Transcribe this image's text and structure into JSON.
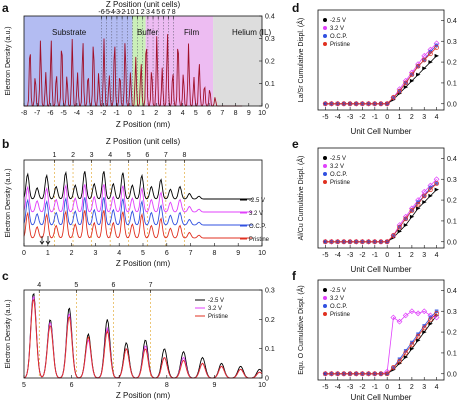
{
  "figure": {
    "panel_labels": [
      "a",
      "b",
      "c",
      "d",
      "e",
      "f"
    ],
    "xlabel_z_nm": "Z Position (nm)",
    "xlabel_z_uc": "Z Position (unit cells)",
    "ylabel_density": "Electron Density (a.u.)",
    "xlabel_unit_cell": "Unit Cell Number"
  },
  "regions": [
    "Substrate",
    "Buffer",
    "Film",
    "Helium (IL)"
  ],
  "region_colors": [
    "#9aa6ee",
    "#b8eaa0",
    "#e7a6ee",
    "#d2d2d2"
  ],
  "series_colors": {
    "-2.5 V": "#000000",
    "3.2 V": "#e040fb",
    "O.C.P.": "#3050e0",
    "Pristine": "#e03020"
  },
  "chart_data": [
    {
      "id": "a",
      "type": "line",
      "xlabel": "Z Position (nm)",
      "x2label": "Z Position (unit cells)",
      "ylabel": "Electron Density (a.u.)",
      "xlim": [
        -8,
        10
      ],
      "ylim": [
        0,
        0.4
      ],
      "xticks": [
        "-8",
        "-7",
        "-6",
        "-5",
        "-4",
        "-3",
        "-2",
        "-1",
        "0",
        "1",
        "2",
        "3",
        "4",
        "5",
        "6",
        "7",
        "8",
        "9",
        "10"
      ],
      "x2ticks": [
        "-6",
        "-5",
        "-4",
        "-3",
        "-2",
        "-1",
        "0",
        "1",
        "2",
        "3",
        "4",
        "5",
        "6",
        "7",
        "8"
      ],
      "yticks": [
        "0",
        "0.1",
        "0.2",
        "0.3",
        "0.4"
      ],
      "regions": [
        {
          "label": "Substrate",
          "from": -8,
          "to": 0.2
        },
        {
          "label": "Buffer",
          "from": 0.2,
          "to": 1.2
        },
        {
          "label": "Film",
          "from": 1.2,
          "to": 6.3
        },
        {
          "label": "Helium (IL)",
          "from": 6.3,
          "to": 10
        }
      ],
      "series": [
        {
          "peak_positions": [
            -7.55,
            -7.15,
            -6.75,
            -6.35,
            -5.95,
            -5.55,
            -5.15,
            -4.75,
            -4.35,
            -3.95,
            -3.55,
            -3.15,
            -2.75,
            -2.35,
            -1.95,
            -1.55,
            -1.15,
            -0.75,
            -0.35,
            0.05,
            0.45,
            0.85,
            1.25,
            1.65,
            2.05,
            2.45,
            2.85,
            3.25,
            3.65,
            4.05,
            4.45,
            4.85,
            5.25,
            5.65,
            6.05,
            6.45
          ],
          "peak_heights": [
            0.28,
            0.14,
            0.3,
            0.15,
            0.3,
            0.15,
            0.3,
            0.14,
            0.3,
            0.15,
            0.3,
            0.15,
            0.3,
            0.15,
            0.3,
            0.14,
            0.3,
            0.15,
            0.3,
            0.15,
            0.22,
            0.2,
            0.31,
            0.17,
            0.32,
            0.17,
            0.33,
            0.16,
            0.31,
            0.15,
            0.28,
            0.13,
            0.2,
            0.1,
            0.08,
            0.04
          ]
        }
      ]
    },
    {
      "id": "b",
      "type": "line",
      "xlabel": "Z Position (nm)",
      "x2label": "Z Position (unit cells)",
      "ylabel": "Electron Density (a.u.)",
      "xlim": [
        0,
        10
      ],
      "xticks": [
        "0",
        "1",
        "2",
        "3",
        "4",
        "5",
        "6",
        "7",
        "8",
        "9",
        "10"
      ],
      "x2ticks": [
        "1",
        "2",
        "3",
        "4",
        "5",
        "6",
        "7",
        "8"
      ],
      "series": [
        {
          "name": "-2.5 V",
          "offset": 3,
          "peak_positions": [
            0.15,
            0.55,
            0.95,
            1.35,
            1.75,
            2.15,
            2.55,
            2.95,
            3.35,
            3.75,
            4.15,
            4.55,
            4.95,
            5.35,
            5.75,
            6.15,
            6.55,
            6.95,
            7.35
          ],
          "peak_heights": [
            0.9,
            0.4,
            0.85,
            0.45,
            0.95,
            0.5,
            1.0,
            0.55,
            1.0,
            0.55,
            0.95,
            0.5,
            0.85,
            0.45,
            0.7,
            0.35,
            0.45,
            0.2,
            0.1
          ]
        },
        {
          "name": "3.2 V",
          "offset": 2,
          "peak_positions": [
            0.15,
            0.55,
            0.95,
            1.35,
            1.75,
            2.15,
            2.55,
            2.95,
            3.35,
            3.75,
            4.15,
            4.55,
            4.95,
            5.35,
            5.75,
            6.15,
            6.55,
            6.95,
            7.35
          ],
          "peak_heights": [
            0.9,
            0.4,
            0.85,
            0.45,
            0.95,
            0.5,
            1.0,
            0.55,
            1.0,
            0.55,
            0.95,
            0.5,
            0.85,
            0.45,
            0.7,
            0.35,
            0.45,
            0.2,
            0.1
          ]
        },
        {
          "name": "O.C.P.",
          "offset": 1,
          "peak_positions": [
            0.15,
            0.55,
            0.95,
            1.35,
            1.75,
            2.15,
            2.55,
            2.95,
            3.35,
            3.75,
            4.15,
            4.55,
            4.95,
            5.35,
            5.75,
            6.15,
            6.55,
            6.95,
            7.35
          ],
          "peak_heights": [
            0.9,
            0.4,
            0.85,
            0.45,
            0.95,
            0.5,
            1.0,
            0.55,
            1.0,
            0.55,
            0.95,
            0.5,
            0.85,
            0.45,
            0.7,
            0.35,
            0.45,
            0.2,
            0.1
          ]
        },
        {
          "name": "Pristine",
          "offset": 0,
          "peak_positions": [
            0.15,
            0.55,
            0.95,
            1.35,
            1.75,
            2.15,
            2.55,
            2.95,
            3.35,
            3.75,
            4.15,
            4.55,
            4.95,
            5.35,
            5.75,
            6.15,
            6.55,
            6.95,
            7.35
          ],
          "peak_heights": [
            0.9,
            0.4,
            0.85,
            0.45,
            0.95,
            0.5,
            1.0,
            0.55,
            1.0,
            0.55,
            0.95,
            0.5,
            0.85,
            0.45,
            0.7,
            0.35,
            0.45,
            0.2,
            0.1
          ]
        }
      ]
    },
    {
      "id": "c",
      "type": "line",
      "xlabel": "Z Position (nm)",
      "x2label": "Z Position (unit cells)",
      "ylabel": "Electron Density (a.u.)",
      "xlim": [
        5,
        10
      ],
      "ylim": [
        0,
        0.3
      ],
      "xticks": [
        "5",
        "6",
        "7",
        "8",
        "9",
        "10"
      ],
      "x2ticks": [
        "4",
        "5",
        "6",
        "7"
      ],
      "yticks": [
        "0",
        "0.1",
        "0.2",
        "0.3"
      ],
      "series": [
        {
          "name": "-2.5 V",
          "peak_positions": [
            5.2,
            5.55,
            5.95,
            6.35,
            6.75,
            7.15,
            7.55,
            7.95,
            8.35,
            8.75,
            9.15,
            9.55,
            9.95
          ],
          "peak_heights": [
            0.29,
            0.2,
            0.24,
            0.15,
            0.2,
            0.12,
            0.13,
            0.1,
            0.09,
            0.07,
            0.05,
            0.04,
            0.03
          ]
        },
        {
          "name": "3.2 V",
          "peak_positions": [
            5.2,
            5.55,
            5.95,
            6.35,
            6.75,
            7.15,
            7.55,
            7.95,
            8.35,
            8.75,
            9.15,
            9.55,
            9.95
          ],
          "peak_heights": [
            0.28,
            0.19,
            0.22,
            0.13,
            0.17,
            0.1,
            0.11,
            0.07,
            0.07,
            0.05,
            0.04,
            0.03,
            0.02
          ]
        },
        {
          "name": "Pristine",
          "peak_positions": [
            5.2,
            5.55,
            5.95,
            6.35,
            6.75,
            7.15,
            7.55,
            7.95,
            8.35,
            8.75,
            9.15,
            9.55,
            9.95
          ],
          "peak_heights": [
            0.27,
            0.18,
            0.21,
            0.14,
            0.16,
            0.1,
            0.1,
            0.07,
            0.06,
            0.05,
            0.04,
            0.03,
            0.02
          ]
        }
      ]
    },
    {
      "id": "d",
      "type": "scatter",
      "xlabel": "Unit Cell Number",
      "ylabel": "La/Sr Cumulative Displ. (Å)",
      "xlim": [
        -5.6,
        4.6
      ],
      "ylim": [
        -0.03,
        0.45
      ],
      "xticks": [
        "-5",
        "-4",
        "-3",
        "-2",
        "-1",
        "0",
        "1",
        "2",
        "3",
        "4"
      ],
      "yticks": [
        "0.0",
        "0.1",
        "0.2",
        "0.3",
        "0.4"
      ],
      "x": [
        -5,
        -4.5,
        -4,
        -3.5,
        -3,
        -2.5,
        -2,
        -1.5,
        -1,
        -0.5,
        0,
        0.5,
        1,
        1.5,
        2,
        2.5,
        3,
        3.5,
        4
      ],
      "series": [
        {
          "name": "-2.5 V",
          "values": [
            0,
            0,
            0,
            0,
            0,
            0,
            0,
            0,
            0,
            0,
            0,
            0.02,
            0.05,
            0.08,
            0.11,
            0.14,
            0.17,
            0.2,
            0.23
          ]
        },
        {
          "name": "3.2 V",
          "values": [
            0,
            0,
            0,
            0,
            0,
            0,
            0,
            0,
            0,
            0,
            0,
            0.03,
            0.07,
            0.11,
            0.15,
            0.19,
            0.23,
            0.26,
            0.29
          ]
        },
        {
          "name": "O.C.P.",
          "values": [
            0,
            0,
            0,
            0,
            0,
            0,
            0,
            0,
            0,
            0,
            0,
            0.03,
            0.06,
            0.1,
            0.14,
            0.18,
            0.21,
            0.25,
            0.28
          ]
        },
        {
          "name": "Pristine",
          "values": [
            0,
            0,
            0,
            0,
            0,
            0,
            0,
            0,
            0,
            0,
            0,
            0.03,
            0.06,
            0.1,
            0.14,
            0.18,
            0.21,
            0.24,
            0.27
          ]
        }
      ]
    },
    {
      "id": "e",
      "type": "scatter",
      "xlabel": "Unit Cell Number",
      "ylabel": "Al/Cu Cumulative Displ. (Å)",
      "xlim": [
        -5.6,
        4.6
      ],
      "ylim": [
        -0.03,
        0.45
      ],
      "xticks": [
        "-5",
        "-4",
        "-3",
        "-2",
        "-1",
        "0",
        "1",
        "2",
        "3",
        "4"
      ],
      "yticks": [
        "0.0",
        "0.1",
        "0.2",
        "0.3",
        "0.4"
      ],
      "x": [
        -5,
        -4.5,
        -4,
        -3.5,
        -3,
        -2.5,
        -2,
        -1.5,
        -1,
        -0.5,
        0,
        0.5,
        1,
        1.5,
        2,
        2.5,
        3,
        3.5,
        4
      ],
      "series": [
        {
          "name": "-2.5 V",
          "values": [
            0,
            0,
            0,
            0,
            0,
            0,
            0,
            0,
            0,
            0,
            0,
            0.02,
            0.05,
            0.08,
            0.12,
            0.16,
            0.19,
            0.22,
            0.25
          ]
        },
        {
          "name": "3.2 V",
          "values": [
            0,
            0,
            0,
            0,
            0,
            0,
            0,
            0,
            0,
            0,
            0,
            0.03,
            0.08,
            0.12,
            0.16,
            0.2,
            0.24,
            0.27,
            0.3
          ]
        },
        {
          "name": "O.C.P.",
          "values": [
            0,
            0,
            0,
            0,
            0,
            0,
            0,
            0,
            0,
            0,
            0,
            0.03,
            0.07,
            0.11,
            0.15,
            0.19,
            0.22,
            0.26,
            0.28
          ]
        },
        {
          "name": "Pristine",
          "values": [
            0,
            0,
            0,
            0,
            0,
            0,
            0,
            0,
            0,
            0,
            0,
            0.03,
            0.07,
            0.11,
            0.15,
            0.18,
            0.22,
            0.25,
            0.28
          ]
        }
      ]
    },
    {
      "id": "f",
      "type": "scatter",
      "xlabel": "Unit Cell Number",
      "ylabel": "Equ. O Cumulative Displ. (Å)",
      "xlim": [
        -5.6,
        4.6
      ],
      "ylim": [
        -0.03,
        0.45
      ],
      "xticks": [
        "-5",
        "-4",
        "-3",
        "-2",
        "-1",
        "0",
        "1",
        "2",
        "3",
        "4"
      ],
      "yticks": [
        "0.0",
        "0.1",
        "0.2",
        "0.3",
        "0.4"
      ],
      "x": [
        -5,
        -4.5,
        -4,
        -3.5,
        -3,
        -2.5,
        -2,
        -1.5,
        -1,
        -0.5,
        0,
        0.5,
        1,
        1.5,
        2,
        2.5,
        3,
        3.5,
        4
      ],
      "series": [
        {
          "name": "-2.5 V",
          "values": [
            0,
            0,
            0,
            0,
            0,
            0,
            0,
            0,
            0,
            0,
            0,
            0.02,
            0.05,
            0.08,
            0.12,
            0.16,
            0.2,
            0.24,
            0.28
          ]
        },
        {
          "name": "3.2 V",
          "values": [
            0,
            0,
            0,
            0,
            0,
            0,
            0,
            0,
            0,
            0,
            0.01,
            0.27,
            0.25,
            0.28,
            0.3,
            0.29,
            0.3,
            0.28,
            0.27
          ]
        },
        {
          "name": "O.C.P.",
          "values": [
            0,
            0,
            0,
            0,
            0,
            0,
            0,
            0,
            0,
            0,
            0,
            0.03,
            0.07,
            0.11,
            0.15,
            0.19,
            0.23,
            0.27,
            0.3
          ]
        },
        {
          "name": "Pristine",
          "values": [
            0,
            0,
            0,
            0,
            0,
            0,
            0,
            0,
            0,
            0,
            0,
            0.03,
            0.06,
            0.1,
            0.14,
            0.18,
            0.22,
            0.26,
            0.29
          ]
        }
      ]
    }
  ]
}
